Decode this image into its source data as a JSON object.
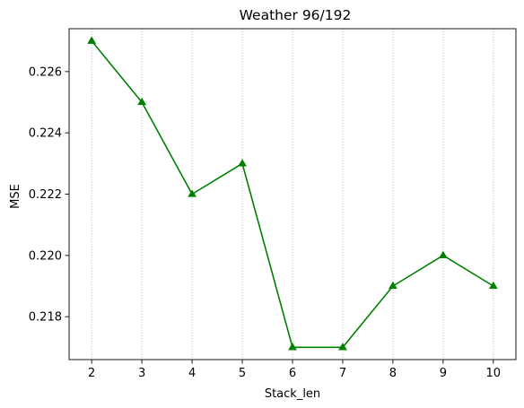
{
  "chart_data": {
    "type": "line",
    "title": "Weather 96/192",
    "xlabel": "Stack_len",
    "ylabel": "MSE",
    "x": [
      2,
      3,
      4,
      5,
      6,
      7,
      8,
      9,
      10
    ],
    "series": [
      {
        "values": [
          0.227,
          0.225,
          0.222,
          0.223,
          0.217,
          0.217,
          0.219,
          0.22,
          0.219
        ]
      }
    ],
    "xlim": [
      1.55,
      10.45
    ],
    "ylim": [
      0.2166,
      0.2274
    ],
    "x_ticks": [
      2,
      3,
      4,
      5,
      6,
      7,
      8,
      9,
      10
    ],
    "x_tick_labels": [
      "2",
      "3",
      "4",
      "5",
      "6",
      "7",
      "8",
      "9",
      "10"
    ],
    "y_ticks": [
      0.218,
      0.22,
      0.222,
      0.224,
      0.226
    ],
    "y_tick_labels": [
      "0.218",
      "0.220",
      "0.222",
      "0.224",
      "0.226"
    ],
    "grid": "vertical dotted",
    "line_color": "#008000",
    "marker": "triangle-up",
    "grid_color": "#b0b0b0"
  }
}
